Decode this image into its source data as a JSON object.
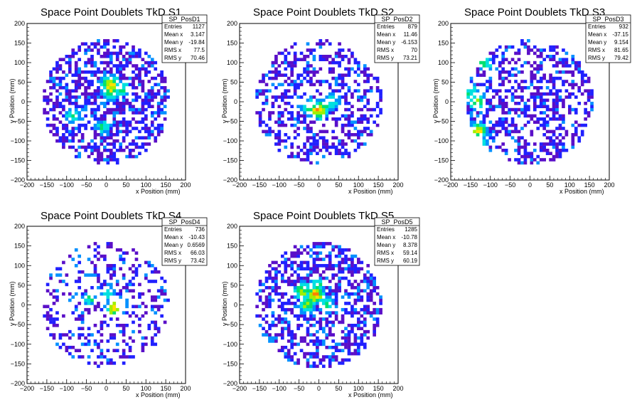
{
  "chart_data": [
    {
      "type": "heatmap",
      "title": "Space Point Doublets TkD S1",
      "xlabel": "x Position (mm)",
      "ylabel": "y Position (mm)",
      "xlim": [
        -200,
        200
      ],
      "ylim": [
        -200,
        200
      ],
      "ticks": [
        -200,
        -150,
        -100,
        -50,
        0,
        50,
        100,
        150,
        200
      ],
      "stats": {
        "name": "SP_PosD1",
        "rows": [
          [
            "Entries",
            "1127"
          ],
          [
            "Mean x",
            "3.147"
          ],
          [
            "Mean y",
            "-19.84"
          ],
          [
            "RMS x",
            "77.5"
          ],
          [
            "RMS y",
            "70.46"
          ]
        ]
      },
      "hotspots": [
        [
          10,
          45,
          1.0
        ],
        [
          12,
          25,
          0.7
        ],
        [
          40,
          35,
          0.5
        ],
        [
          -85,
          -35,
          0.45
        ],
        [
          -10,
          -65,
          0.45
        ]
      ],
      "fill_density": 0.55,
      "seed": 11
    },
    {
      "type": "heatmap",
      "title": "Space Point Doublets TkD S2",
      "xlabel": "x Position (mm)",
      "ylabel": "y Position (mm)",
      "xlim": [
        -200,
        200
      ],
      "ylim": [
        -200,
        200
      ],
      "ticks": [
        -200,
        -150,
        -100,
        -50,
        0,
        50,
        100,
        150,
        200
      ],
      "stats": {
        "name": "SP_PosD2",
        "rows": [
          [
            "Entries",
            "879"
          ],
          [
            "Mean x",
            "11.46"
          ],
          [
            "Mean y",
            "-6.153"
          ],
          [
            "RMS x",
            "70"
          ],
          [
            "RMS y",
            "73.21"
          ]
        ]
      },
      "hotspots": [
        [
          0,
          -20,
          1.0
        ],
        [
          -20,
          -15,
          0.6
        ],
        [
          25,
          -5,
          0.5
        ],
        [
          35,
          5,
          0.4
        ]
      ],
      "fill_density": 0.42,
      "seed": 23
    },
    {
      "type": "heatmap",
      "title": "Space Point Doublets TkD S3",
      "xlabel": "x Position (mm)",
      "ylabel": "y Position (mm)",
      "xlim": [
        -200,
        200
      ],
      "ylim": [
        -200,
        200
      ],
      "ticks": [
        -200,
        -150,
        -100,
        -50,
        0,
        50,
        100,
        150,
        200
      ],
      "stats": {
        "name": "SP_PosD3",
        "rows": [
          [
            "Entries",
            "932"
          ],
          [
            "Mean x",
            "-37.15"
          ],
          [
            "Mean y",
            "9.154"
          ],
          [
            "RMS x",
            "81.65"
          ],
          [
            "RMS y",
            "79.42"
          ]
        ]
      },
      "hotspots": [
        [
          -130,
          -75,
          0.9
        ],
        [
          -135,
          0,
          0.6
        ],
        [
          -150,
          25,
          0.5
        ],
        [
          -115,
          100,
          0.55
        ],
        [
          -125,
          -100,
          0.45
        ]
      ],
      "fill_density": 0.45,
      "seed": 37
    },
    {
      "type": "heatmap",
      "title": "Space Point Doublets TkD S4",
      "xlabel": "x Position (mm)",
      "ylabel": "y Position (mm)",
      "xlim": [
        -200,
        200
      ],
      "ylim": [
        -200,
        200
      ],
      "ticks": [
        -200,
        -150,
        -100,
        -50,
        0,
        50,
        100,
        150,
        200
      ],
      "stats": {
        "name": "SP_PosD4",
        "rows": [
          [
            "Entries",
            "736"
          ],
          [
            "Mean x",
            "-10.43"
          ],
          [
            "Mean y",
            "0.6569"
          ],
          [
            "RMS x",
            "66.03"
          ],
          [
            "RMS y",
            "73.42"
          ]
        ]
      },
      "hotspots": [
        [
          20,
          -10,
          0.9
        ],
        [
          35,
          0,
          0.5
        ],
        [
          -40,
          15,
          0.45
        ],
        [
          5,
          30,
          0.4
        ]
      ],
      "fill_density": 0.3,
      "seed": 49
    },
    {
      "type": "heatmap",
      "title": "Space Point Doublets TkD S5",
      "xlabel": "x Position (mm)",
      "ylabel": "y Position (mm)",
      "xlim": [
        -200,
        200
      ],
      "ylim": [
        -200,
        200
      ],
      "ticks": [
        -200,
        -150,
        -100,
        -50,
        0,
        50,
        100,
        150,
        200
      ],
      "stats": {
        "name": "SP_PosD5",
        "rows": [
          [
            "Entries",
            "1285"
          ],
          [
            "Mean x",
            "-10.78"
          ],
          [
            "Mean y",
            "8.378"
          ],
          [
            "RMS x",
            "59.14"
          ],
          [
            "RMS y",
            "60.19"
          ]
        ]
      },
      "hotspots": [
        [
          -10,
          25,
          1.0
        ],
        [
          -40,
          35,
          0.7
        ],
        [
          -30,
          0,
          0.6
        ],
        [
          20,
          0,
          0.55
        ],
        [
          -5,
          50,
          0.5
        ]
      ],
      "fill_density": 0.5,
      "seed": 61
    }
  ],
  "colors": {
    "palette": [
      "#5a0fc8",
      "#2020ff",
      "#0090ff",
      "#00e0e0",
      "#00e070",
      "#a0f000",
      "#ffe000",
      "#ff8000",
      "#ff0000"
    ],
    "frame": "#000000",
    "background": "#ffffff"
  }
}
